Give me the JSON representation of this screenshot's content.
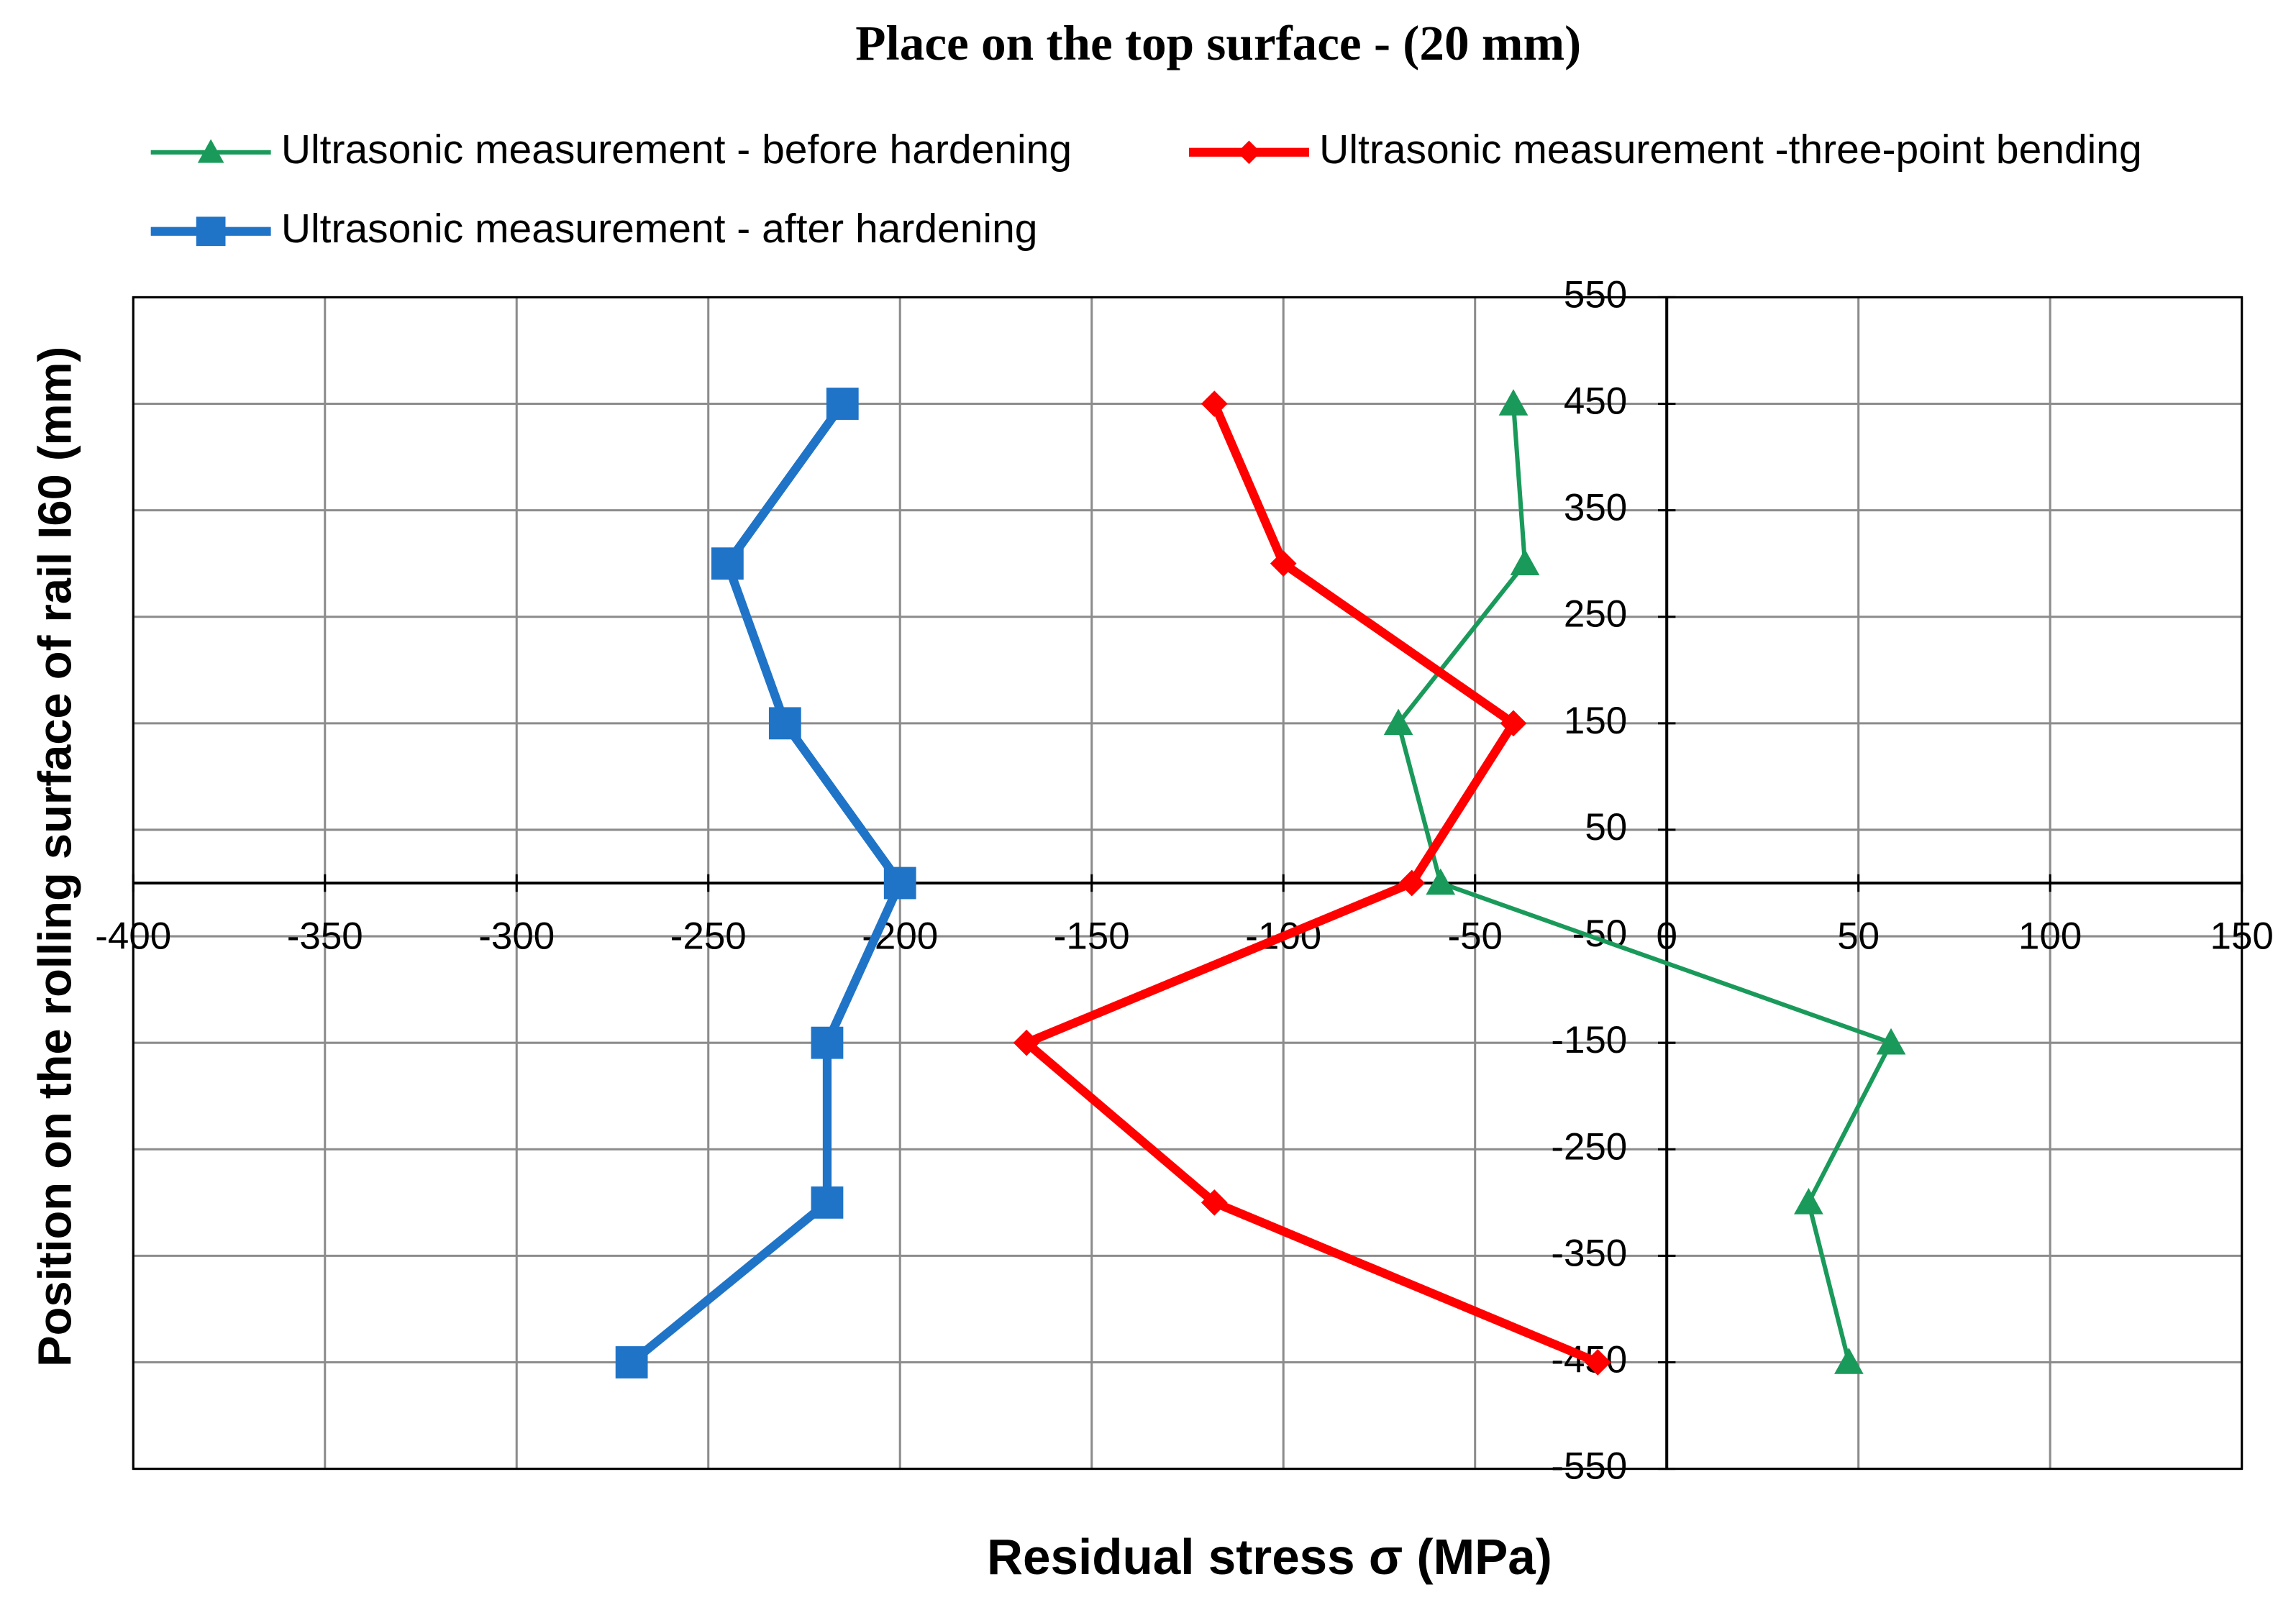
{
  "chart_data": {
    "type": "line",
    "title": "Place on the top surface - (20 mm)",
    "x_label": "Residual stress  σ (MPa)",
    "y_label": "Position on the rolling surface of rail I60 (mm)",
    "y": [
      450,
      300,
      150,
      0,
      -150,
      -300,
      -450
    ],
    "series": [
      {
        "name": "Ultrasonic measurement - before hardening",
        "color": "#1a9a5a",
        "marker": "triangle",
        "values": [
          -40,
          -37,
          -70,
          -59,
          58.5,
          37,
          47.5
        ]
      },
      {
        "name": "Ultrasonic measurement -three-point bending",
        "color": "#ff0000",
        "marker": "diamond",
        "values": [
          -118,
          -100,
          -40,
          -66.5,
          -167,
          -118,
          -18
        ]
      },
      {
        "name": "Ultrasonic measurement - after hardening",
        "color": "#1f74c8",
        "marker": "square",
        "values": [
          -215,
          -245,
          -230,
          -200,
          -219,
          -219,
          -270
        ]
      }
    ],
    "xlim": [
      -400,
      150
    ],
    "xticks": [
      -400,
      -350,
      -300,
      -250,
      -200,
      -150,
      -100,
      -50,
      0,
      50,
      100,
      150
    ],
    "ylim": [
      -550,
      550
    ],
    "yticks": [
      550,
      450,
      350,
      250,
      150,
      50,
      -50,
      -150,
      -250,
      -350,
      -450,
      -550
    ],
    "grid": true
  }
}
